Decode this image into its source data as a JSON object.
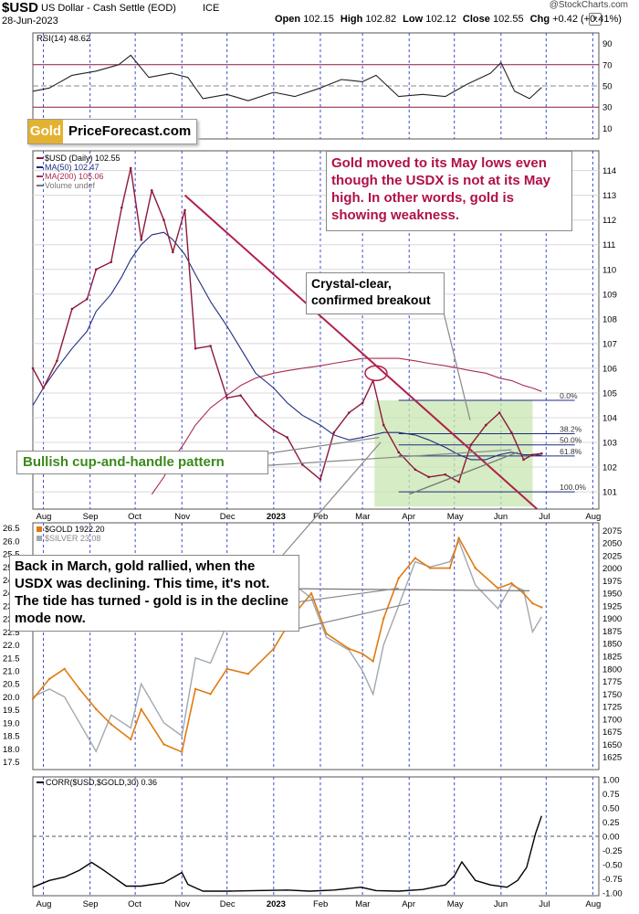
{
  "header": {
    "symbol": "$USD",
    "name": "US Dollar - Cash Settle (EOD)",
    "exchange": "ICE",
    "date": "28-Jun-2023",
    "open_label": "Open",
    "open": "102.15",
    "high_label": "High",
    "high": "102.82",
    "low_label": "Low",
    "low": "102.12",
    "close_label": "Close",
    "close": "102.55",
    "chg_label": "Chg",
    "chg": "+0.42 (+0.41%)",
    "watermark": "@StockCharts.com"
  },
  "logo": {
    "gold": "Gold",
    "rest": "PriceForecast.com"
  },
  "callouts": {
    "weakness": "Gold moved to its May lows even though the USDX is not at its May high. In other words, gold is showing weakness.",
    "breakout": "Crystal-clear, confirmed breakout",
    "cup": "Bullish cup-and-handle pattern",
    "march": "Back in March, gold rallied, when the USDX was declining. This time, it's not. The tide has turned  - gold is in the decline mode now."
  },
  "colors": {
    "usd_price": "#8b1a3a",
    "ma50": "#1f2d80",
    "ma200": "#a82d50",
    "trendline": "#b0204a",
    "gold_line": "#e07a10",
    "silver_line": "#a0a8b0",
    "box_fill": "#c8e6b0",
    "weakness_text": "#b0104a",
    "cup_text": "#3a8a1a"
  },
  "chart_data": [
    {
      "type": "line",
      "panel": "rsi",
      "legend": "RSI(14) 48.62",
      "ylim": [
        0,
        100
      ],
      "yticks": [
        10,
        30,
        50,
        70,
        90
      ],
      "levels": [
        70,
        30
      ],
      "x": [
        "2022-07-25",
        "2022-08-05",
        "2022-08-20",
        "2022-09-05",
        "2022-09-20",
        "2022-09-28",
        "2022-10-10",
        "2022-10-25",
        "2022-11-05",
        "2022-11-15",
        "2022-12-01",
        "2022-12-15",
        "2023-01-01",
        "2023-01-15",
        "2023-02-01",
        "2023-02-15",
        "2023-03-01",
        "2023-03-10",
        "2023-03-25",
        "2023-04-10",
        "2023-04-25",
        "2023-05-10",
        "2023-05-25",
        "2023-06-01",
        "2023-06-10",
        "2023-06-20",
        "2023-06-28"
      ],
      "values": [
        45,
        48,
        60,
        64,
        70,
        79,
        58,
        62,
        58,
        38,
        42,
        36,
        44,
        40,
        48,
        56,
        54,
        60,
        40,
        42,
        40,
        52,
        62,
        72,
        45,
        38,
        48.62
      ]
    },
    {
      "type": "line",
      "panel": "usd",
      "legend": [
        "$USD (Daily) 102.55",
        "MA(50) 102.47",
        "MA(200) 105.06",
        "Volume undef"
      ],
      "ylim": [
        100.3,
        114.8
      ],
      "yticks": [
        101,
        102,
        103,
        104,
        105,
        106,
        107,
        108,
        109,
        110,
        111,
        112,
        113,
        114
      ],
      "xticks": [
        "Aug",
        "Sep",
        "Oct",
        "Nov",
        "Dec",
        "2023",
        "Feb",
        "Mar",
        "Apr",
        "May",
        "Jun",
        "Jul",
        "Aug"
      ],
      "fib_levels": [
        {
          "label": "0.0%",
          "value": 104.7
        },
        {
          "label": "38.2%",
          "value": 103.35
        },
        {
          "label": "50.0%",
          "value": 102.9
        },
        {
          "label": "61.8%",
          "value": 102.45
        },
        {
          "label": "100.0%",
          "value": 101.0
        }
      ],
      "x": [
        "2022-07-25",
        "2022-08-01",
        "2022-08-10",
        "2022-08-20",
        "2022-08-30",
        "2022-09-05",
        "2022-09-15",
        "2022-09-22",
        "2022-09-28",
        "2022-10-05",
        "2022-10-12",
        "2022-10-20",
        "2022-10-26",
        "2022-11-03",
        "2022-11-10",
        "2022-11-20",
        "2022-12-01",
        "2022-12-10",
        "2022-12-20",
        "2023-01-01",
        "2023-01-10",
        "2023-01-20",
        "2023-02-01",
        "2023-02-10",
        "2023-02-20",
        "2023-03-01",
        "2023-03-08",
        "2023-03-15",
        "2023-03-25",
        "2023-04-05",
        "2023-04-14",
        "2023-04-25",
        "2023-05-04",
        "2023-05-12",
        "2023-05-22",
        "2023-05-31",
        "2023-06-08",
        "2023-06-16",
        "2023-06-22",
        "2023-06-28"
      ],
      "series": [
        {
          "name": "$USD (Daily) 102.55",
          "values": [
            106.0,
            105.2,
            106.3,
            108.4,
            108.8,
            110.0,
            110.3,
            112.5,
            114.1,
            111.2,
            113.2,
            112.0,
            110.7,
            112.4,
            106.8,
            106.9,
            104.8,
            104.9,
            104.1,
            103.5,
            103.2,
            102.1,
            101.5,
            103.4,
            104.2,
            104.6,
            105.5,
            103.7,
            102.6,
            101.9,
            101.6,
            101.7,
            101.4,
            102.9,
            103.7,
            104.2,
            103.4,
            102.3,
            102.5,
            102.55
          ]
        },
        {
          "name": "MA(50) 102.47",
          "values": [
            104.5,
            105.2,
            106.0,
            106.8,
            107.5,
            108.3,
            109.0,
            109.7,
            110.4,
            111.0,
            111.4,
            111.5,
            111.2,
            110.6,
            109.8,
            108.7,
            107.7,
            106.8,
            105.8,
            105.2,
            104.6,
            104.1,
            103.7,
            103.3,
            103.1,
            103.2,
            103.3,
            103.4,
            103.4,
            103.3,
            103.1,
            102.8,
            102.5,
            102.3,
            102.3,
            102.5,
            102.6,
            102.5,
            102.5,
            102.47
          ]
        },
        {
          "name": "MA(200) 105.06",
          "values": [
            null,
            null,
            null,
            null,
            null,
            null,
            null,
            null,
            null,
            null,
            100.9,
            101.6,
            102.3,
            103.0,
            103.7,
            104.4,
            104.9,
            105.3,
            105.6,
            105.8,
            105.9,
            106.0,
            106.1,
            106.2,
            106.3,
            106.4,
            106.4,
            106.4,
            106.4,
            106.3,
            106.2,
            106.1,
            106.0,
            105.9,
            105.8,
            105.6,
            105.5,
            105.3,
            105.2,
            105.06
          ]
        }
      ]
    },
    {
      "type": "line",
      "panel": "gold",
      "legend": [
        "$GOLD 1922.20",
        "$SILVER 23.08"
      ],
      "ylim_gold": [
        1600,
        2090
      ],
      "yticks_gold": [
        1625,
        1650,
        1675,
        1700,
        1725,
        1750,
        1775,
        1800,
        1825,
        1850,
        1875,
        1900,
        1925,
        1950,
        1975,
        2000,
        2025,
        2050,
        2075
      ],
      "ylim_silver": [
        17.2,
        26.7
      ],
      "yticks_silver": [
        17.5,
        18.0,
        18.5,
        19.0,
        19.5,
        20.0,
        20.5,
        21.0,
        21.5,
        22.0,
        22.5,
        23.0,
        23.5,
        24.0,
        24.5,
        25.0,
        25.5,
        26.0,
        26.5
      ],
      "x": [
        "2022-07-25",
        "2022-08-05",
        "2022-08-15",
        "2022-08-25",
        "2022-09-05",
        "2022-09-15",
        "2022-09-28",
        "2022-10-05",
        "2022-10-20",
        "2022-11-01",
        "2022-11-10",
        "2022-11-20",
        "2022-12-01",
        "2022-12-15",
        "2023-01-01",
        "2023-01-15",
        "2023-01-26",
        "2023-02-05",
        "2023-02-20",
        "2023-03-01",
        "2023-03-08",
        "2023-03-15",
        "2023-03-25",
        "2023-04-05",
        "2023-04-15",
        "2023-04-28",
        "2023-05-04",
        "2023-05-15",
        "2023-05-30",
        "2023-06-08",
        "2023-06-16",
        "2023-06-22",
        "2023-06-28"
      ],
      "series": [
        {
          "name": "$GOLD 1922.20",
          "values": [
            1740,
            1780,
            1800,
            1760,
            1720,
            1690,
            1660,
            1720,
            1650,
            1635,
            1760,
            1750,
            1800,
            1790,
            1840,
            1910,
            1950,
            1870,
            1840,
            1830,
            1815,
            1900,
            1980,
            2020,
            2000,
            2000,
            2060,
            2000,
            1960,
            1970,
            1950,
            1930,
            1922.2
          ]
        },
        {
          "name": "$SILVER 23.08",
          "values": [
            20.0,
            20.3,
            20.0,
            19.0,
            17.9,
            19.3,
            18.8,
            20.5,
            19.0,
            18.5,
            21.5,
            21.3,
            22.8,
            23.5,
            24.0,
            24.3,
            23.8,
            22.3,
            21.8,
            21.0,
            20.1,
            22.0,
            23.5,
            25.2,
            25.0,
            25.2,
            26.0,
            24.3,
            23.4,
            24.3,
            24.1,
            22.5,
            23.08
          ]
        }
      ]
    },
    {
      "type": "line",
      "panel": "corr",
      "legend": "CORR($USD,$GOLD,30) 0.36",
      "ylim": [
        -1.05,
        1.05
      ],
      "yticks": [
        -1.0,
        -0.75,
        -0.5,
        -0.25,
        0.0,
        0.25,
        0.5,
        0.75,
        1.0
      ],
      "xticks": [
        "Aug",
        "Sep",
        "Oct",
        "Nov",
        "Dec",
        "2023",
        "Feb",
        "Mar",
        "Apr",
        "May",
        "Jun",
        "Jul",
        "Aug"
      ],
      "x": [
        "2022-07-25",
        "2022-08-05",
        "2022-08-15",
        "2022-08-25",
        "2022-09-02",
        "2022-09-10",
        "2022-09-25",
        "2022-10-05",
        "2022-10-20",
        "2022-11-01",
        "2022-11-05",
        "2022-11-15",
        "2022-12-01",
        "2022-12-20",
        "2023-01-10",
        "2023-01-25",
        "2023-02-10",
        "2023-02-28",
        "2023-03-10",
        "2023-03-25",
        "2023-04-10",
        "2023-04-25",
        "2023-05-01",
        "2023-05-06",
        "2023-05-15",
        "2023-05-25",
        "2023-06-05",
        "2023-06-12",
        "2023-06-18",
        "2023-06-24",
        "2023-06-28"
      ],
      "values": [
        -0.9,
        -0.78,
        -0.72,
        -0.6,
        -0.46,
        -0.6,
        -0.88,
        -0.88,
        -0.82,
        -0.64,
        -0.85,
        -0.97,
        -0.97,
        -0.96,
        -0.95,
        -0.97,
        -0.95,
        -0.9,
        -0.96,
        -0.97,
        -0.94,
        -0.86,
        -0.7,
        -0.45,
        -0.78,
        -0.86,
        -0.9,
        -0.78,
        -0.55,
        0.05,
        0.36
      ]
    }
  ]
}
